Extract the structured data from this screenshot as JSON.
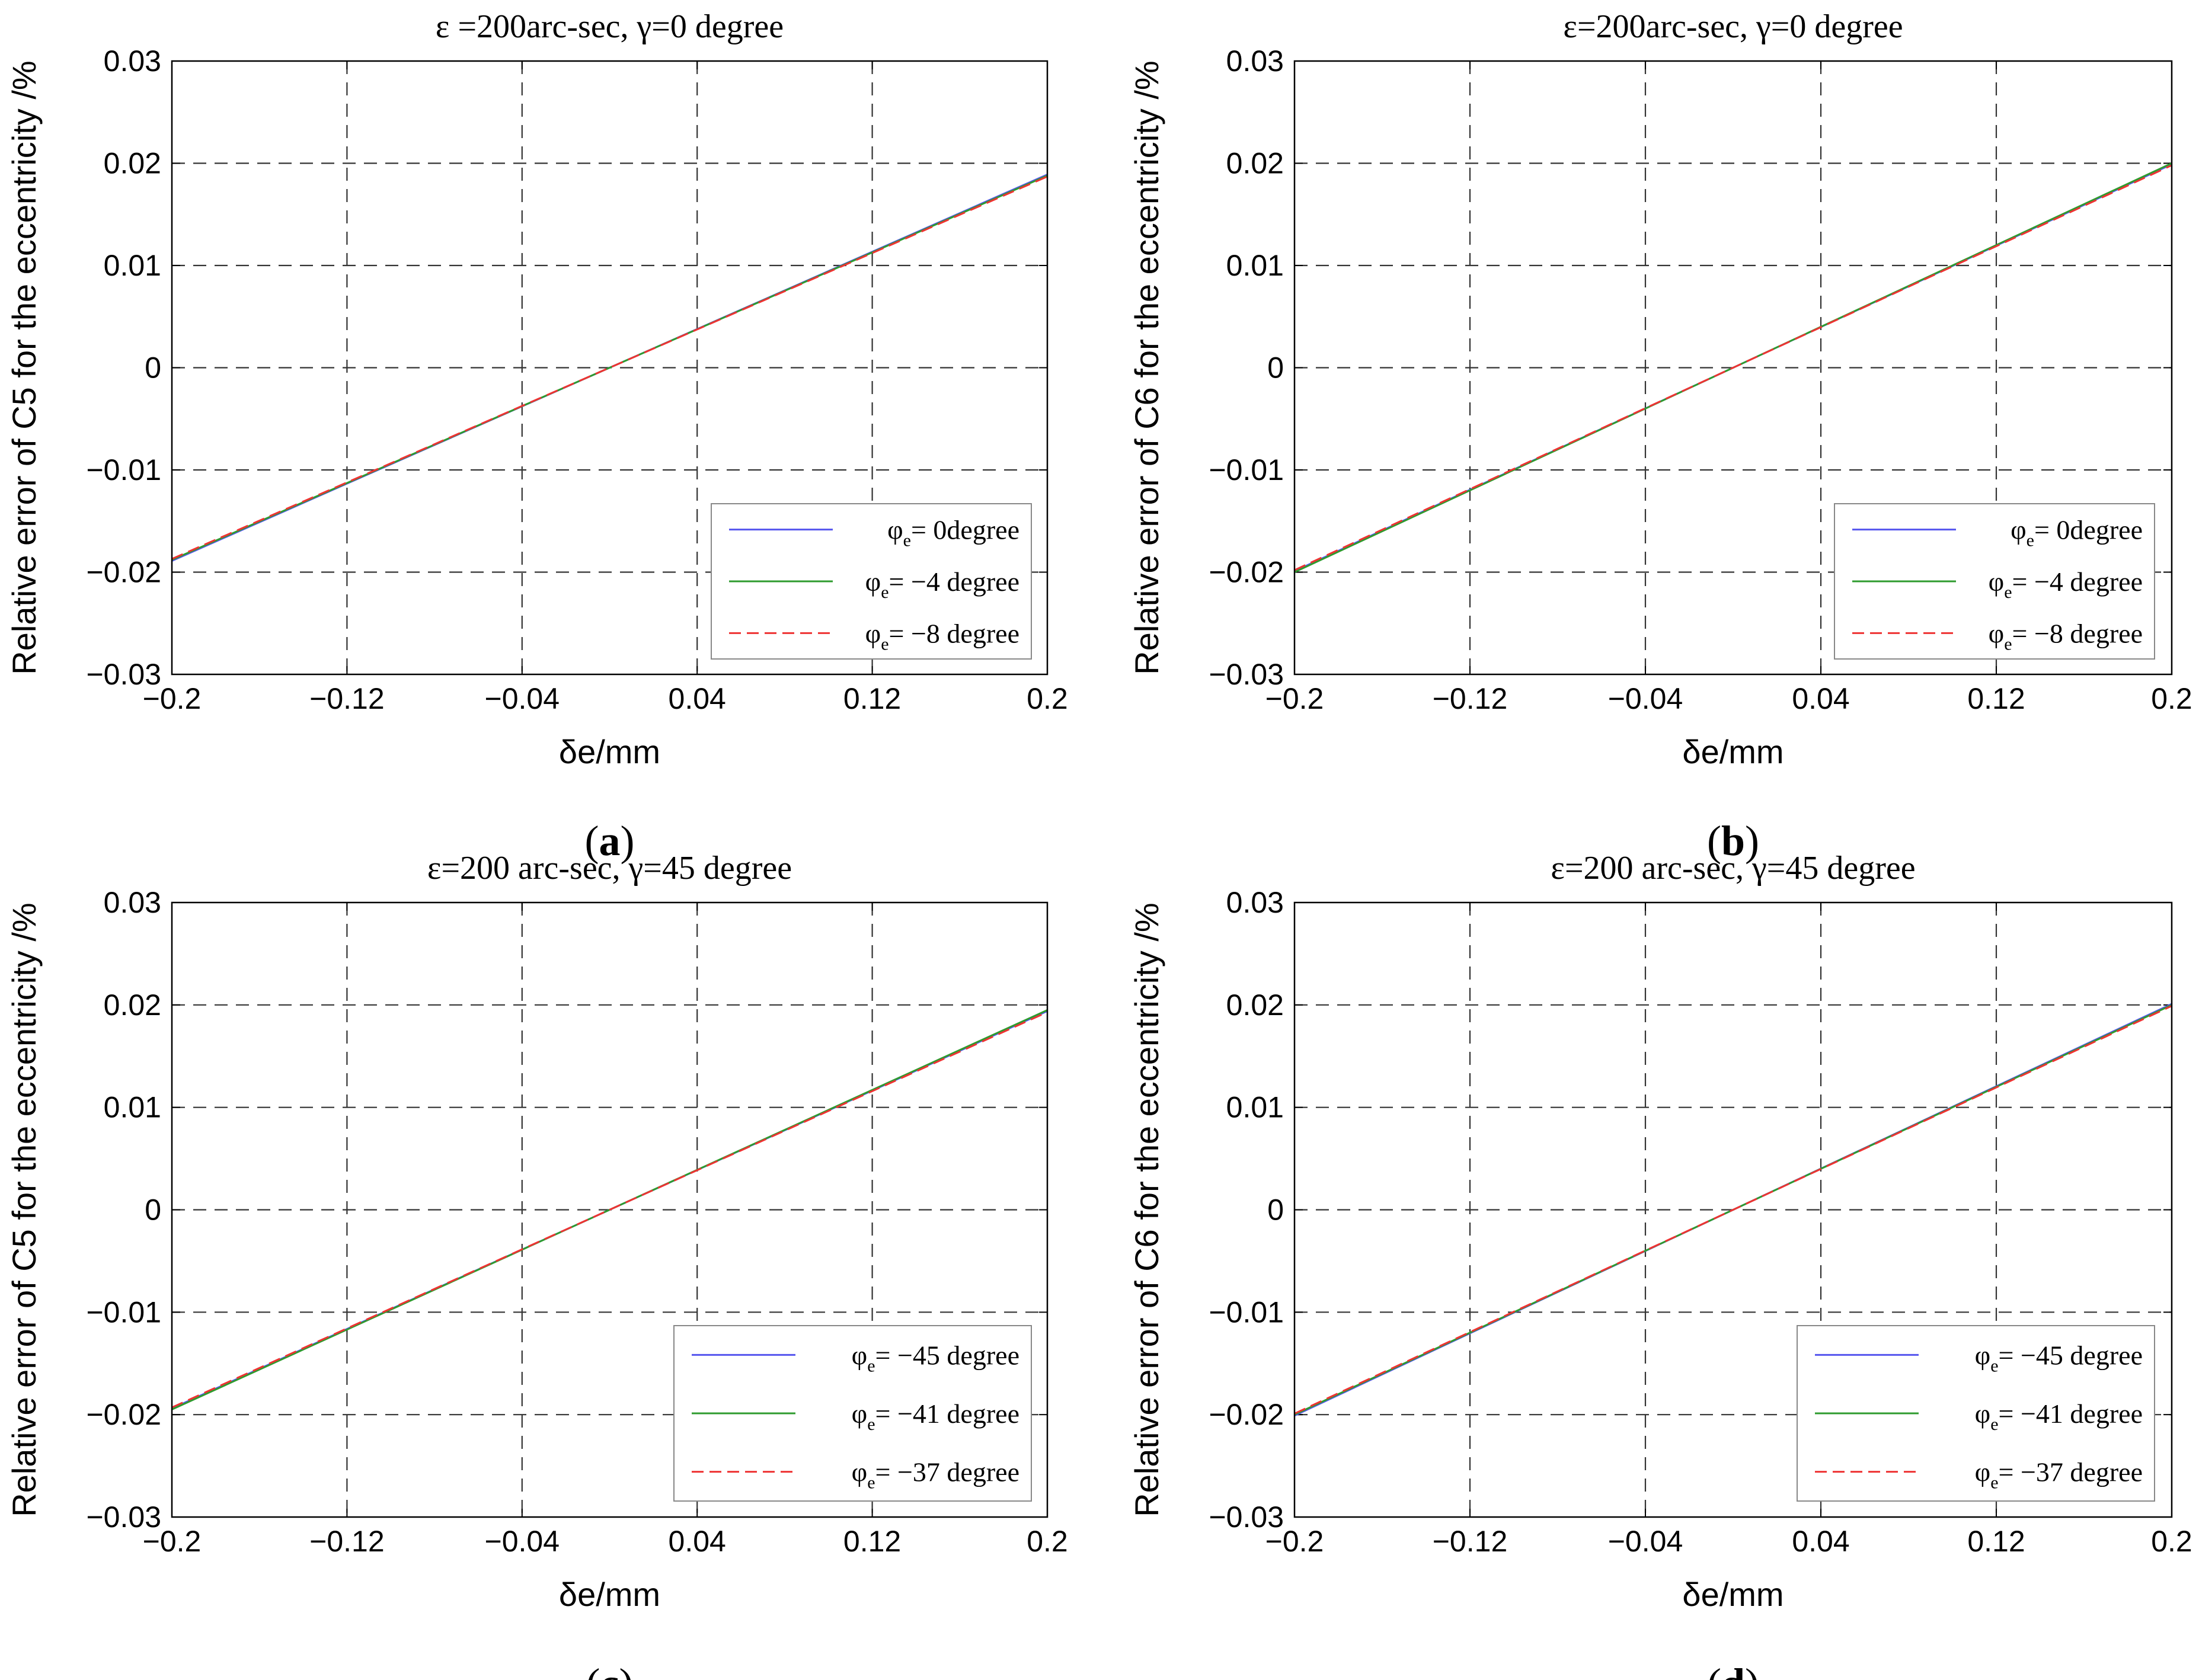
{
  "chart_data": [
    {
      "type": "line",
      "panel_label": "a",
      "title": "ε =200arc-sec, γ=0 degree",
      "xlabel": "δe/mm",
      "ylabel": "Relative error of C5 for the eccentricity /%",
      "xlim": [
        -0.2,
        0.2
      ],
      "ylim": [
        -0.03,
        0.03
      ],
      "xticks": [
        "−0.2",
        "−0.12",
        "−0.04",
        "0.04",
        "0.12",
        "0.2"
      ],
      "yticks": [
        "0.03",
        "0.02",
        "0.01",
        "0",
        "−0.01",
        "−0.02",
        "−0.03"
      ],
      "grid": true,
      "legend_position": "bottom-right",
      "series": [
        {
          "name": "0degree",
          "prefix": "φe= ",
          "color": "#5555ee",
          "dash": "solid",
          "x": [
            -0.2,
            0.2
          ],
          "y": [
            -0.0189,
            0.0189
          ]
        },
        {
          "name": "−4 degree",
          "prefix": "φe= ",
          "color": "#2e9b2e",
          "dash": "solid",
          "x": [
            -0.2,
            0.2
          ],
          "y": [
            -0.0188,
            0.0188
          ]
        },
        {
          "name": "−8 degree",
          "prefix": "φe= ",
          "color": "#ee3333",
          "dash": "dashed",
          "x": [
            -0.2,
            0.2
          ],
          "y": [
            -0.0187,
            0.0187
          ]
        }
      ]
    },
    {
      "type": "line",
      "panel_label": "b",
      "title": "ε=200arc-sec, γ=0 degree",
      "xlabel": "δe/mm",
      "ylabel": "Relative error of C6 for the eccentricity /%",
      "xlim": [
        -0.2,
        0.2
      ],
      "ylim": [
        -0.03,
        0.03
      ],
      "xticks": [
        "−0.2",
        "−0.12",
        "−0.04",
        "0.04",
        "0.12",
        "0.2"
      ],
      "yticks": [
        "0.03",
        "0.02",
        "0.01",
        "0",
        "−0.01",
        "−0.02",
        "−0.03"
      ],
      "grid": true,
      "legend_position": "bottom-right",
      "series": [
        {
          "name": "0degree",
          "prefix": "φe= ",
          "color": "#5555ee",
          "dash": "solid",
          "x": [
            -0.2,
            0.2
          ],
          "y": [
            -0.0199,
            0.0199
          ]
        },
        {
          "name": "−4 degree",
          "prefix": "φe= ",
          "color": "#2e9b2e",
          "dash": "solid",
          "x": [
            -0.2,
            0.2
          ],
          "y": [
            -0.02,
            0.02
          ]
        },
        {
          "name": "−8 degree",
          "prefix": "φe= ",
          "color": "#ee3333",
          "dash": "dashed",
          "x": [
            -0.2,
            0.2
          ],
          "y": [
            -0.0198,
            0.0198
          ]
        }
      ]
    },
    {
      "type": "line",
      "panel_label": "c",
      "title": "ε=200 arc-sec, γ=45 degree",
      "xlabel": "δe/mm",
      "ylabel": "Relative error of C5 for the eccentricity /%",
      "xlim": [
        -0.2,
        0.2
      ],
      "ylim": [
        -0.03,
        0.03
      ],
      "xticks": [
        "−0.2",
        "−0.12",
        "−0.04",
        "0.04",
        "0.12",
        "0.2"
      ],
      "yticks": [
        "0.03",
        "0.02",
        "0.01",
        "0",
        "−0.01",
        "−0.02",
        "−0.03"
      ],
      "grid": true,
      "legend_position": "bottom-right",
      "series": [
        {
          "name": "−45 degree",
          "prefix": "φe= ",
          "color": "#5555ee",
          "dash": "solid",
          "x": [
            -0.2,
            0.2
          ],
          "y": [
            -0.0194,
            0.0194
          ]
        },
        {
          "name": "−41 degree",
          "prefix": "φe= ",
          "color": "#2e9b2e",
          "dash": "solid",
          "x": [
            -0.2,
            0.2
          ],
          "y": [
            -0.0195,
            0.0195
          ]
        },
        {
          "name": "−37 degree",
          "prefix": "φe= ",
          "color": "#ee3333",
          "dash": "dashed",
          "x": [
            -0.2,
            0.2
          ],
          "y": [
            -0.0193,
            0.0193
          ]
        }
      ]
    },
    {
      "type": "line",
      "panel_label": "d",
      "title": "ε=200 arc-sec, γ=45 degree",
      "xlabel": "δe/mm",
      "ylabel": "Relative error of C6 for the eccentricity /%",
      "xlim": [
        -0.2,
        0.2
      ],
      "ylim": [
        -0.03,
        0.03
      ],
      "xticks": [
        "−0.2",
        "−0.12",
        "−0.04",
        "0.04",
        "0.12",
        "0.2"
      ],
      "yticks": [
        "0.03",
        "0.02",
        "0.01",
        "0",
        "−0.01",
        "−0.02",
        "−0.03"
      ],
      "grid": true,
      "legend_position": "bottom-right",
      "series": [
        {
          "name": "−45 degree",
          "prefix": "φe= ",
          "color": "#5555ee",
          "dash": "solid",
          "x": [
            -0.2,
            0.2
          ],
          "y": [
            -0.0201,
            0.0201
          ]
        },
        {
          "name": "−41 degree",
          "prefix": "φe= ",
          "color": "#2e9b2e",
          "dash": "solid",
          "x": [
            -0.2,
            0.2
          ],
          "y": [
            -0.02,
            0.02
          ]
        },
        {
          "name": "−37 degree",
          "prefix": "φe= ",
          "color": "#ee3333",
          "dash": "dashed",
          "x": [
            -0.2,
            0.2
          ],
          "y": [
            -0.0199,
            0.0199
          ]
        }
      ]
    }
  ]
}
